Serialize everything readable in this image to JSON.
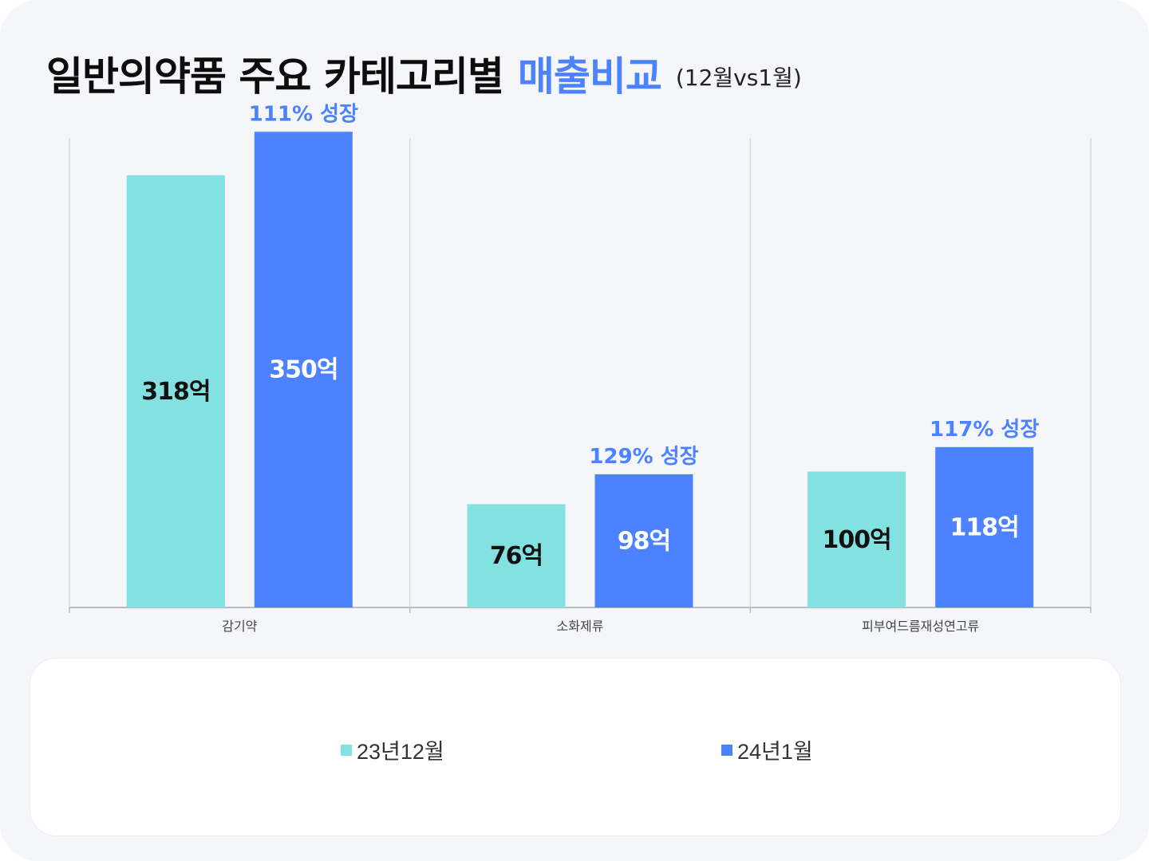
{
  "title": {
    "main": "일반의약품 주요 카테고리별",
    "accent": "매출비교",
    "sub": "(12월vs1월)"
  },
  "colors": {
    "series_dec": "#84e1e1",
    "series_jan": "#4c82ff",
    "grid": "#d7d9de",
    "axis": "#b9bcc3"
  },
  "chart_data": {
    "type": "bar",
    "categories": [
      "감기약",
      "소화제류",
      "피부여드름재성연고류"
    ],
    "series": [
      {
        "name": "23년12월",
        "values": [
          318,
          76,
          100
        ],
        "labels": [
          "318억",
          "76억",
          "100억"
        ]
      },
      {
        "name": "24년1월",
        "values": [
          350,
          98,
          118
        ],
        "labels": [
          "350억",
          "98억",
          "118억"
        ]
      }
    ],
    "growth_labels": [
      "111% 성장",
      "129% 성장",
      "117% 성장"
    ],
    "ylim": [
      0,
      400
    ],
    "grid": true,
    "legend_placement": "bottom"
  },
  "legend": {
    "items": [
      {
        "label": "23년12월"
      },
      {
        "label": "24년1월"
      }
    ]
  }
}
